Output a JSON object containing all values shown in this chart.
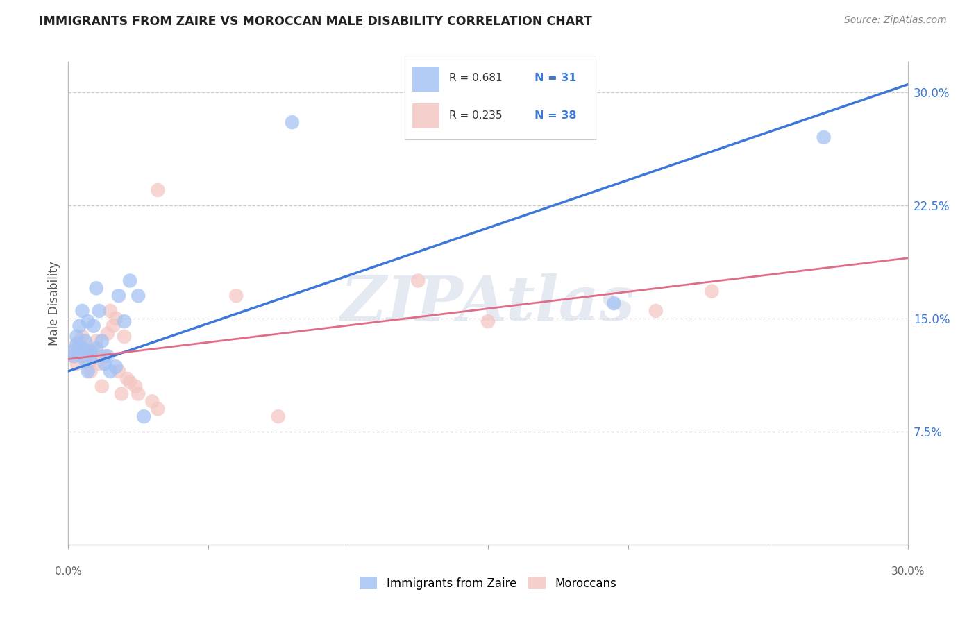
{
  "title": "IMMIGRANTS FROM ZAIRE VS MOROCCAN MALE DISABILITY CORRELATION CHART",
  "source": "Source: ZipAtlas.com",
  "ylabel": "Male Disability",
  "xlim": [
    0.0,
    0.3
  ],
  "ylim": [
    0.0,
    0.32
  ],
  "xtick_labels_bottom": [
    "0.0%",
    "30.0%"
  ],
  "xtick_vals_bottom": [
    0.0,
    0.3
  ],
  "ytick_labels_right": [
    "7.5%",
    "15.0%",
    "22.5%",
    "30.0%"
  ],
  "ytick_vals_right": [
    0.075,
    0.15,
    0.225,
    0.3
  ],
  "blue_scatter_color": "#a4c2f4",
  "pink_scatter_color": "#f4c7c3",
  "blue_line_color": "#3c78d8",
  "pink_line_color": "#e06c88",
  "legend_R_blue": "R = 0.681",
  "legend_N_blue": "N = 31",
  "legend_R_pink": "R = 0.235",
  "legend_N_pink": "N = 38",
  "legend_label_blue": "Immigrants from Zaire",
  "legend_label_pink": "Moroccans",
  "watermark": "ZIPAtlas",
  "blue_x": [
    0.001,
    0.002,
    0.003,
    0.003,
    0.004,
    0.004,
    0.005,
    0.005,
    0.006,
    0.006,
    0.007,
    0.007,
    0.008,
    0.008,
    0.009,
    0.01,
    0.01,
    0.011,
    0.012,
    0.013,
    0.014,
    0.015,
    0.017,
    0.018,
    0.02,
    0.022,
    0.025,
    0.027,
    0.08,
    0.195,
    0.27
  ],
  "blue_y": [
    0.128,
    0.125,
    0.133,
    0.138,
    0.13,
    0.145,
    0.13,
    0.155,
    0.122,
    0.135,
    0.148,
    0.115,
    0.125,
    0.128,
    0.145,
    0.13,
    0.17,
    0.155,
    0.135,
    0.12,
    0.125,
    0.115,
    0.118,
    0.165,
    0.148,
    0.175,
    0.165,
    0.085,
    0.28,
    0.16,
    0.27
  ],
  "pink_x": [
    0.001,
    0.002,
    0.003,
    0.003,
    0.004,
    0.004,
    0.005,
    0.005,
    0.006,
    0.006,
    0.007,
    0.008,
    0.008,
    0.009,
    0.01,
    0.011,
    0.012,
    0.013,
    0.014,
    0.015,
    0.016,
    0.017,
    0.018,
    0.019,
    0.02,
    0.021,
    0.022,
    0.024,
    0.025,
    0.03,
    0.032,
    0.032,
    0.06,
    0.075,
    0.125,
    0.15,
    0.21,
    0.23
  ],
  "pink_y": [
    0.128,
    0.125,
    0.12,
    0.132,
    0.13,
    0.135,
    0.125,
    0.138,
    0.13,
    0.125,
    0.128,
    0.122,
    0.115,
    0.128,
    0.135,
    0.12,
    0.105,
    0.125,
    0.14,
    0.155,
    0.145,
    0.15,
    0.115,
    0.1,
    0.138,
    0.11,
    0.108,
    0.105,
    0.1,
    0.095,
    0.09,
    0.235,
    0.165,
    0.085,
    0.175,
    0.148,
    0.155,
    0.168
  ],
  "blue_line_x0": 0.0,
  "blue_line_y0": 0.115,
  "blue_line_x1": 0.3,
  "blue_line_y1": 0.305,
  "pink_line_x0": 0.0,
  "pink_line_y0": 0.123,
  "pink_line_x1": 0.3,
  "pink_line_y1": 0.19
}
